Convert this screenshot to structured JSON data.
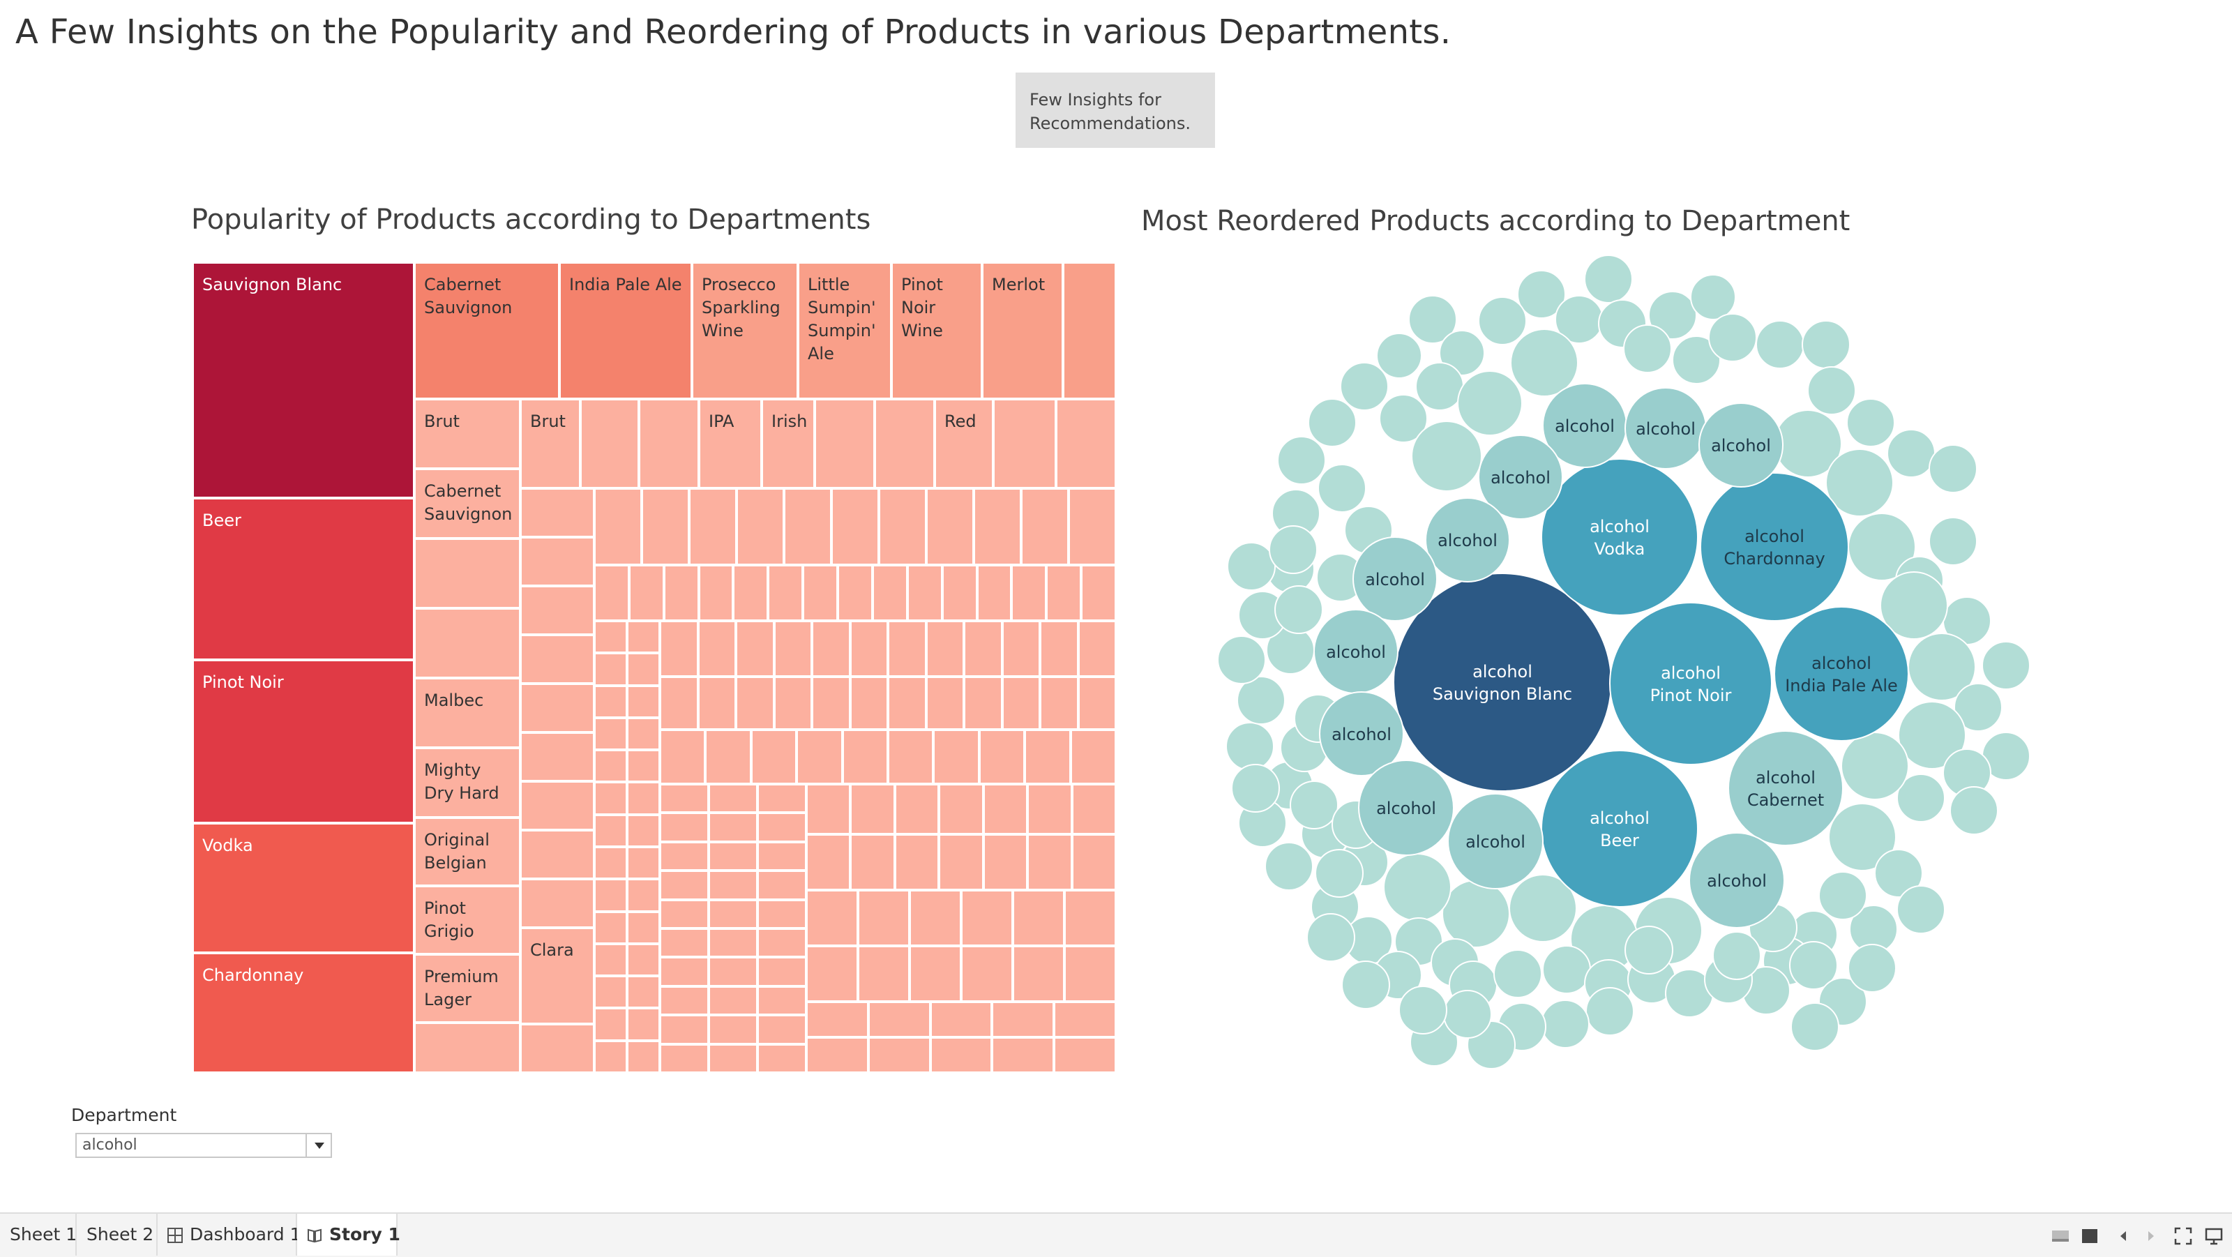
{
  "story": {
    "title": "A Few Insights on the Popularity and Reordering of Products in various Departments.",
    "story_point": "Few Insights for Recommendations."
  },
  "treemap": {
    "title": "Popularity of Products according to Departments",
    "colors": {
      "dark": "#ad1538",
      "red": "#e03a45",
      "mid": "#f05a4f",
      "salmon": "#f4826c",
      "light": "#f99f89",
      "pale": "#fcb09f",
      "border": "#ffffff"
    },
    "labels": {
      "sauvignon_blanc": "Sauvignon Blanc",
      "beer": "Beer",
      "pinot_noir": "Pinot Noir",
      "vodka": "Vodka",
      "chardonnay": "Chardonnay",
      "cabernet_sauvignon": "Cabernet Sauvignon",
      "india_pale_ale": "India Pale Ale",
      "prosecco": "Prosecco Sparkling Wine",
      "little_sumpin": "Little Sumpin' Sumpin' Ale",
      "pinot_noir_wine": "Pinot Noir Wine",
      "merlot": "Merlot",
      "brut_1": "Brut",
      "brut_2": "Brut",
      "ipa": "IPA",
      "irish": "Irish",
      "red": "Red",
      "cabernet_sauvignon_2": "Cabernet Sauvignon",
      "malbec": "Malbec",
      "mighty_dry_hard": "Mighty Dry Hard",
      "original_belgian": "Original Belgian",
      "pinot_grigio": "Pinot Grigio",
      "premium_lager": "Premium Lager",
      "clara": "Clara"
    }
  },
  "bubbles": {
    "title": "Most Reordered Products according to Department",
    "colors": {
      "navy": "#2c5985",
      "teal": "#45a2bd",
      "mint": "#99cecd",
      "pale": "#b2ddd6"
    },
    "labels": {
      "sauvignon_blanc": [
        "alcohol",
        "Sauvignon Blanc"
      ],
      "pinot_noir": [
        "alcohol",
        "Pinot Noir"
      ],
      "vodka": [
        "alcohol",
        "Vodka"
      ],
      "chardonnay": [
        "alcohol",
        "Chardonnay"
      ],
      "beer": [
        "alcohol",
        "Beer"
      ],
      "india_pale_ale": [
        "alcohol",
        "India Pale Ale"
      ],
      "cabernet": [
        "alcohol",
        "Cabernet"
      ],
      "small_1": [
        "alcohol"
      ],
      "small_2": [
        "alcohol"
      ],
      "small_3": [
        "alcohol"
      ],
      "small_4": [
        "alcohol"
      ],
      "small_5": [
        "alcohol"
      ],
      "small_6": [
        "alcohol"
      ],
      "small_7": [
        "alcohol"
      ],
      "small_8": [
        "alcohol"
      ],
      "small_9": [
        "alcohol"
      ],
      "small_10": [
        "alcohol"
      ],
      "small_11": [
        "alcohol"
      ]
    }
  },
  "filter": {
    "label": "Department",
    "value": "alcohol"
  },
  "tabs": [
    {
      "label": "Sheet 1",
      "icon": "none"
    },
    {
      "label": "Sheet 2",
      "icon": "none"
    },
    {
      "label": "Dashboard 1",
      "icon": "dashboard-grid-icon"
    },
    {
      "label": "Story 1",
      "icon": "story-book-icon",
      "active": true
    }
  ],
  "controls": [
    "toggle-tabs-icon",
    "show-sheet-icon",
    "prev-icon",
    "next-icon",
    "fullscreen-icon",
    "present-icon"
  ]
}
